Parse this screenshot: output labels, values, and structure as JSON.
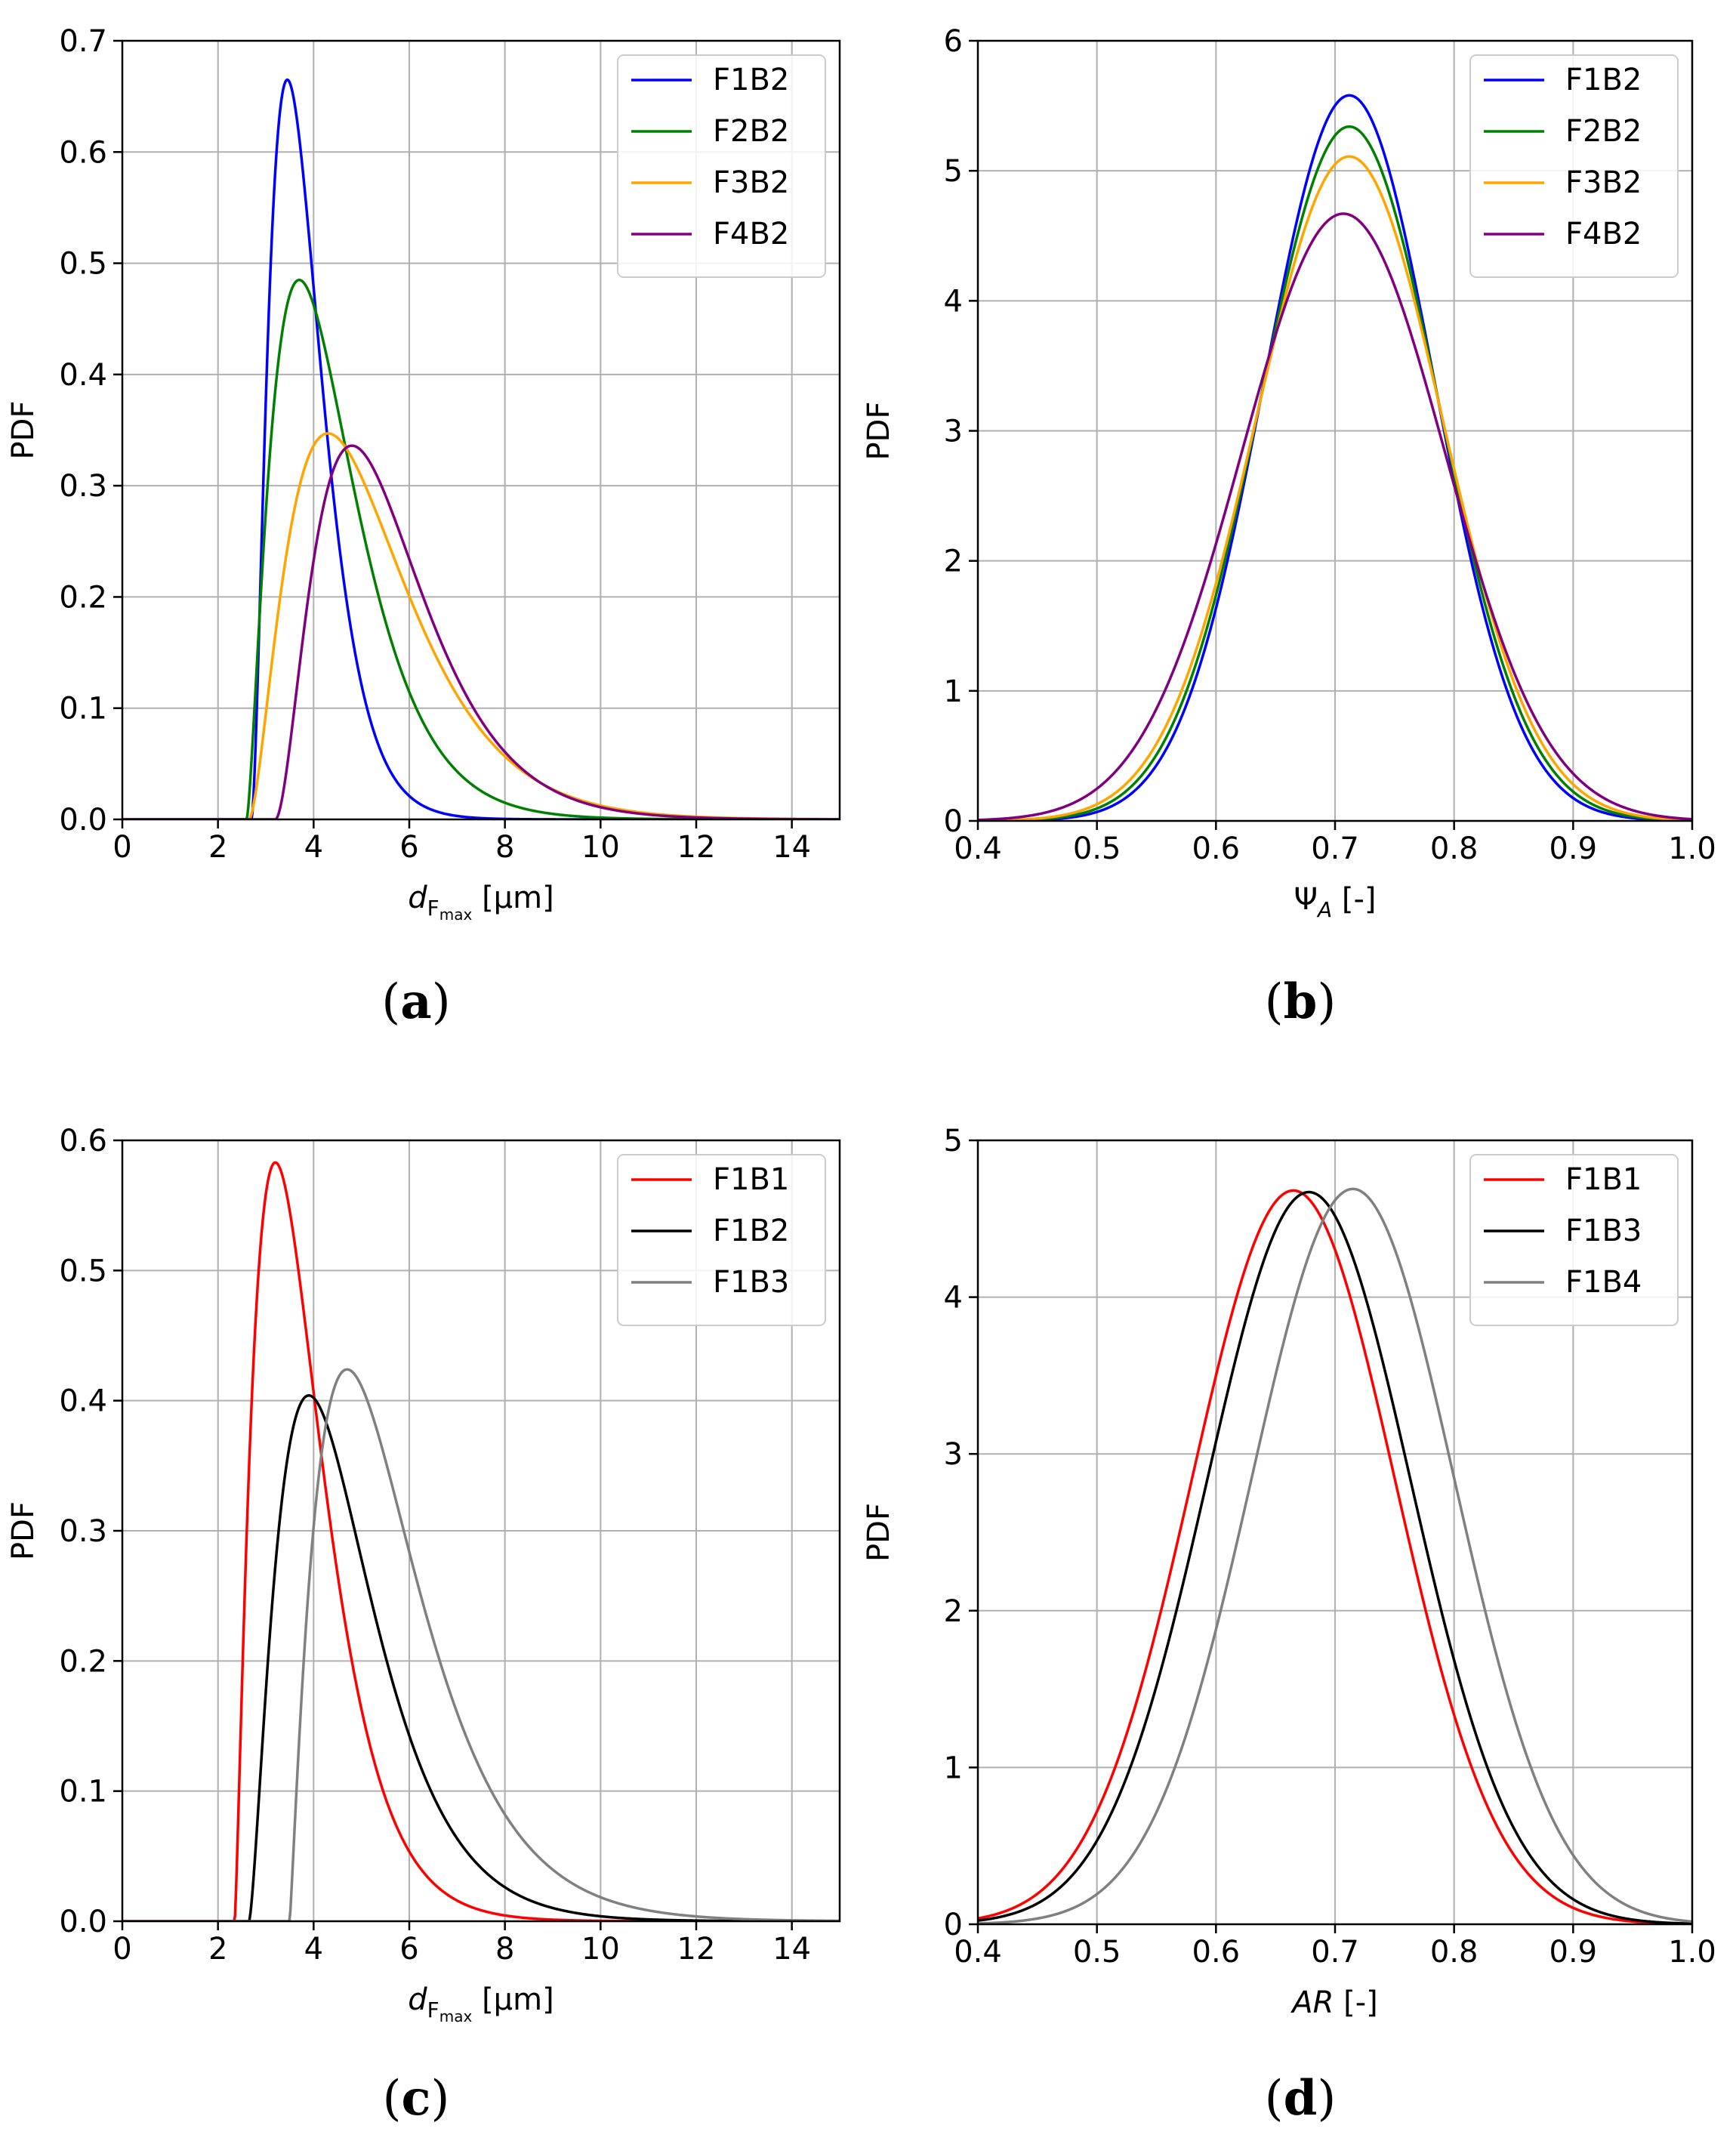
{
  "chart_data": [
    {
      "id": "a",
      "type": "line",
      "caption": "(a)",
      "ylabel": "PDF",
      "xlabel": {
        "symbol": "d",
        "sub": "F",
        "subsub": "max",
        "unit": " [µm]",
        "italic": true
      },
      "xlim": [
        0,
        15
      ],
      "ylim": [
        0,
        0.7
      ],
      "xticks": [
        0,
        2,
        4,
        6,
        8,
        10,
        12,
        14
      ],
      "yticks": [
        0.0,
        0.1,
        0.2,
        0.3,
        0.4,
        0.5,
        0.6,
        0.7
      ],
      "xtick_labels": [
        "0",
        "2",
        "4",
        "6",
        "8",
        "10",
        "12",
        "14"
      ],
      "ytick_labels": [
        "0.0",
        "0.1",
        "0.2",
        "0.3",
        "0.4",
        "0.5",
        "0.6",
        "0.7"
      ],
      "grid": true,
      "legend": "top-right",
      "series": [
        {
          "name": "F1B2",
          "color": "#0000ff",
          "dist": "gamma3",
          "x0": 2.7,
          "mode": 3.45,
          "peak": 0.665,
          "shape": 2.8
        },
        {
          "name": "F2B2",
          "color": "#008000",
          "dist": "gamma3",
          "x0": 2.6,
          "mode": 3.7,
          "peak": 0.485,
          "shape": 2.5
        },
        {
          "name": "F3B2",
          "color": "#ffa500",
          "dist": "gamma3",
          "x0": 2.65,
          "mode": 4.3,
          "peak": 0.347,
          "shape": 2.7
        },
        {
          "name": "F4B2",
          "color": "#800080",
          "dist": "gamma3",
          "x0": 3.2,
          "mode": 4.8,
          "peak": 0.336,
          "shape": 2.9
        }
      ]
    },
    {
      "id": "b",
      "type": "line",
      "caption": "(b)",
      "ylabel": "PDF",
      "xlabel": {
        "symbol": "Ψ",
        "sub": "A",
        "unit": " [-]",
        "italic": false,
        "subItalic": true
      },
      "xlim": [
        0.4,
        1.0
      ],
      "ylim": [
        0,
        6
      ],
      "xticks": [
        0.4,
        0.5,
        0.6,
        0.7,
        0.8,
        0.9,
        1.0
      ],
      "yticks": [
        0,
        1,
        2,
        3,
        4,
        5,
        6
      ],
      "xtick_labels": [
        "0.4",
        "0.5",
        "0.6",
        "0.7",
        "0.8",
        "0.9",
        "1.0"
      ],
      "ytick_labels": [
        "0",
        "1",
        "2",
        "3",
        "4",
        "5",
        "6"
      ],
      "grid": true,
      "legend": "top-right",
      "series": [
        {
          "name": "F1B2",
          "color": "#0000ff",
          "dist": "normal",
          "mode": 0.712,
          "peak": 5.58
        },
        {
          "name": "F2B2",
          "color": "#008000",
          "dist": "normal",
          "mode": 0.712,
          "peak": 5.34
        },
        {
          "name": "F3B2",
          "color": "#ffa500",
          "dist": "normal",
          "mode": 0.712,
          "peak": 5.11
        },
        {
          "name": "F4B2",
          "color": "#800080",
          "dist": "normal",
          "mode": 0.707,
          "peak": 4.67
        }
      ]
    },
    {
      "id": "c",
      "type": "line",
      "caption": "(c)",
      "ylabel": "PDF",
      "xlabel": {
        "symbol": "d",
        "sub": "F",
        "subsub": "max",
        "unit": " [µm]",
        "italic": true
      },
      "xlim": [
        0,
        15
      ],
      "ylim": [
        0,
        0.6
      ],
      "xticks": [
        0,
        2,
        4,
        6,
        8,
        10,
        12,
        14
      ],
      "yticks": [
        0.0,
        0.1,
        0.2,
        0.3,
        0.4,
        0.5,
        0.6
      ],
      "xtick_labels": [
        "0",
        "2",
        "4",
        "6",
        "8",
        "10",
        "12",
        "14"
      ],
      "ytick_labels": [
        "0.0",
        "0.1",
        "0.2",
        "0.3",
        "0.4",
        "0.5",
        "0.6"
      ],
      "grid": true,
      "legend": "top-right",
      "series": [
        {
          "name": "F1B1",
          "color": "#ff0000",
          "dist": "gamma3",
          "x0": 2.35,
          "mode": 3.2,
          "peak": 0.583,
          "shape": 2.3
        },
        {
          "name": "F1B2",
          "color": "#000000",
          "dist": "gamma3",
          "x0": 2.65,
          "mode": 3.9,
          "peak": 0.404,
          "shape": 2.5
        },
        {
          "name": "F1B3",
          "color": "#808080",
          "dist": "gamma3",
          "x0": 3.5,
          "mode": 4.7,
          "peak": 0.424,
          "shape": 2.15
        }
      ]
    },
    {
      "id": "d",
      "type": "line",
      "caption": "(d)",
      "ylabel": "PDF",
      "xlabel": {
        "symbol": "AR",
        "unit": " [-]",
        "italic": true
      },
      "xlim": [
        0.4,
        1.0
      ],
      "ylim": [
        0,
        5
      ],
      "xticks": [
        0.4,
        0.5,
        0.6,
        0.7,
        0.8,
        0.9,
        1.0
      ],
      "yticks": [
        0,
        1,
        2,
        3,
        4,
        5
      ],
      "xtick_labels": [
        "0.4",
        "0.5",
        "0.6",
        "0.7",
        "0.8",
        "0.9",
        "1.0"
      ],
      "ytick_labels": [
        "0",
        "1",
        "2",
        "3",
        "4",
        "5"
      ],
      "grid": true,
      "legend": "top-right",
      "series": [
        {
          "name": "F1B1",
          "color": "#ff0000",
          "dist": "normal",
          "mode": 0.665,
          "peak": 4.68
        },
        {
          "name": "F1B3",
          "color": "#000000",
          "dist": "normal",
          "mode": 0.678,
          "peak": 4.67
        },
        {
          "name": "F1B4",
          "color": "#808080",
          "dist": "normal",
          "mode": 0.715,
          "peak": 4.69
        }
      ]
    }
  ]
}
